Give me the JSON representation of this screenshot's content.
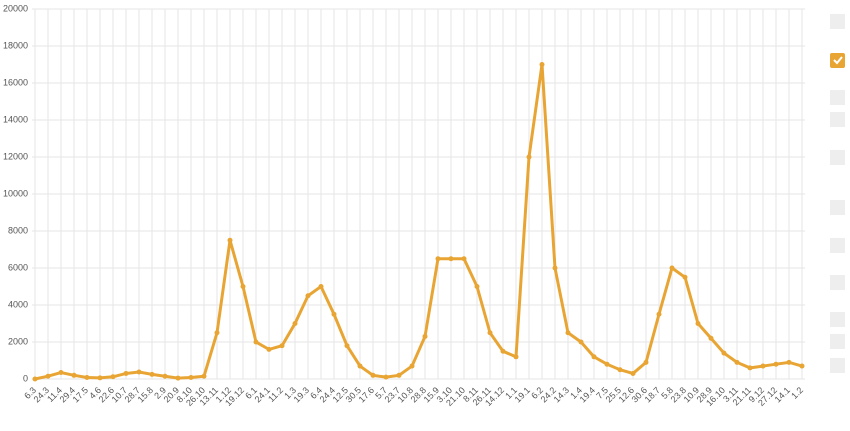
{
  "chart_data": {
    "type": "line",
    "categories": [
      "6.3",
      "24.3",
      "11.4",
      "29.4",
      "17.5",
      "4.6",
      "22.6",
      "10.7",
      "28.7",
      "15.8",
      "2.9",
      "20.9",
      "8.10",
      "26.10",
      "13.11",
      "1.12",
      "19.12",
      "6.1",
      "24.1",
      "11.2",
      "1.3",
      "19.3",
      "6.4",
      "24.4",
      "12.5",
      "30.5",
      "17.6",
      "5.7",
      "23.7",
      "10.8",
      "28.8",
      "15.9",
      "3.10",
      "21.10",
      "8.11",
      "26.11",
      "14.12",
      "1.1",
      "19.1",
      "6.2",
      "24.2",
      "14.3",
      "1.4",
      "19.4",
      "7.5",
      "25.5",
      "12.6",
      "30.6",
      "18.7",
      "5.8",
      "23.8",
      "10.9",
      "28.9",
      "16.10",
      "3.11",
      "21.11",
      "9.12",
      "27.12",
      "14.1",
      "1.2"
    ],
    "series": [
      {
        "color": "#e8a534",
        "values": [
          0,
          150,
          350,
          200,
          80,
          60,
          120,
          300,
          380,
          250,
          150,
          50,
          80,
          150,
          2500,
          7500,
          5000,
          2000,
          1600,
          1800,
          3000,
          4500,
          5000,
          3500,
          1800,
          700,
          200,
          100,
          200,
          700,
          2300,
          6500,
          6500,
          6500,
          5000,
          2500,
          1500,
          1200,
          12000,
          17000,
          6000,
          2500,
          2000,
          1200,
          800,
          500,
          300,
          900,
          3500,
          6000,
          5500,
          3000,
          2200,
          1400,
          900,
          600,
          700,
          800,
          900,
          700
        ]
      }
    ],
    "ylim": [
      0,
      20000
    ],
    "yticks": [
      0,
      2000,
      4000,
      6000,
      8000,
      10000,
      12000,
      14000,
      16000,
      18000,
      20000
    ],
    "grid": true
  }
}
